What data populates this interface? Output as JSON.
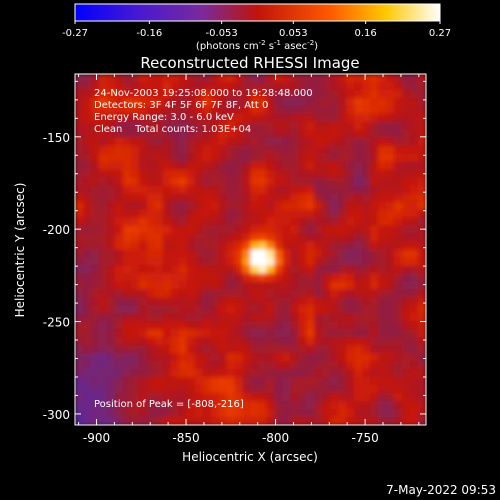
{
  "colorbar": {
    "ticks": [
      -0.27,
      -0.16,
      -0.053,
      0.053,
      0.16,
      0.27
    ],
    "tick_labels": [
      "-0.27",
      "-0.16",
      "-0.053",
      "0.053",
      "0.16",
      "0.27"
    ],
    "range": [
      -0.27,
      0.27
    ],
    "units_prefix": "(photons cm",
    "units_sup1": "-2",
    "units_mid": " s",
    "units_sup2": "-1",
    "units_mid2": " asec",
    "units_sup3": "-2",
    "units_suffix": ")",
    "colormap": "blue-purple-red-yellow-white"
  },
  "chart_data": {
    "type": "heatmap",
    "title": "Reconstructed RHESSI Image",
    "xlabel": "Heliocentric X (arcsec)",
    "ylabel": "Heliocentric Y (arcsec)",
    "xlim": [
      -912,
      -716
    ],
    "ylim": [
      -306,
      -116
    ],
    "x_ticks": [
      -900,
      -850,
      -800,
      -750
    ],
    "x_tick_labels": [
      "-900",
      "-850",
      "-800",
      "-750"
    ],
    "y_ticks": [
      -150,
      -200,
      -250,
      -300
    ],
    "y_tick_labels": [
      "-150",
      "-200",
      "-250",
      "-300"
    ],
    "peak": [
      -808,
      -216
    ],
    "info_lines": [
      "24-Nov-2003 19:25:08.000 to 19:28:48.000",
      "Detectors: 3F 4F 5F 6F 7F 8F, Att 0",
      "Energy Range: 3.0 - 6.0 keV",
      "Clean    Total counts: 1.03E+04"
    ],
    "peak_label": "Position of Peak = [-808,-216]"
  },
  "timestamp": "7-May-2022 09:53"
}
